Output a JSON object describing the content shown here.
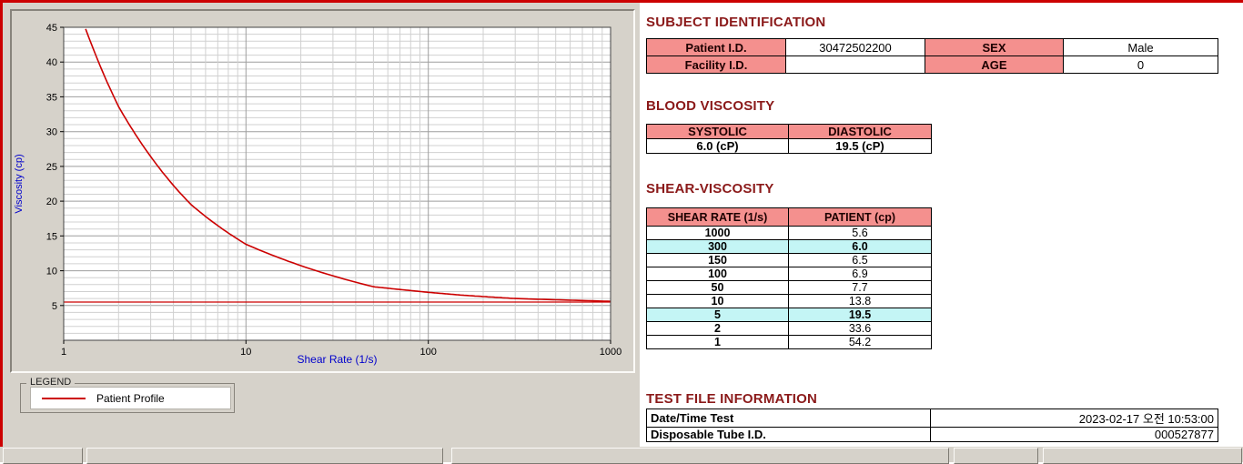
{
  "colors": {
    "section_title": "#8b1a1a",
    "table_header_bg": "#f4908e",
    "highlight_bg": "#c4f5f5",
    "curve_red": "#cc0000",
    "axis_label_blue": "#0000cc"
  },
  "chart_data": {
    "type": "line",
    "title": "",
    "xlabel": "Shear Rate (1/s)",
    "ylabel": "Viscosity (cp)",
    "x_scale": "log",
    "xlim": [
      1,
      1000
    ],
    "ylim": [
      0,
      45
    ],
    "x_ticks": [
      1,
      10,
      100,
      1000
    ],
    "y_ticks": [
      5,
      10,
      15,
      20,
      25,
      30,
      35,
      40,
      45
    ],
    "grid": true,
    "series": [
      {
        "name": "Patient Profile",
        "color": "#cc0000",
        "x": [
          1,
          2,
          5,
          10,
          50,
          100,
          150,
          300,
          1000
        ],
        "y": [
          54.2,
          33.6,
          19.5,
          13.8,
          7.7,
          6.9,
          6.5,
          6.0,
          5.6
        ]
      }
    ],
    "reference_line_y": 5.5,
    "legend_position": "below-left"
  },
  "legend": {
    "group_label": "LEGEND",
    "item_label": "Patient Profile"
  },
  "subject": {
    "title": "SUBJECT IDENTIFICATION",
    "rows": [
      {
        "label1": "Patient I.D.",
        "value1": "30472502200",
        "label2": "SEX",
        "value2": "Male"
      },
      {
        "label1": "Facility I.D.",
        "value1": "",
        "label2": "AGE",
        "value2": "0"
      }
    ]
  },
  "blood_viscosity": {
    "title": "BLOOD VISCOSITY",
    "headers": [
      "SYSTOLIC",
      "DIASTOLIC"
    ],
    "values": [
      "6.0 (cP)",
      "19.5 (cP)"
    ]
  },
  "shear_viscosity": {
    "title": "SHEAR-VISCOSITY",
    "headers": [
      "SHEAR RATE (1/s)",
      "PATIENT (cp)"
    ],
    "rows": [
      {
        "rate": "1000",
        "value": "5.6",
        "highlight": false
      },
      {
        "rate": "300",
        "value": "6.0",
        "highlight": true
      },
      {
        "rate": "150",
        "value": "6.5",
        "highlight": false
      },
      {
        "rate": "100",
        "value": "6.9",
        "highlight": false
      },
      {
        "rate": "50",
        "value": "7.7",
        "highlight": false
      },
      {
        "rate": "10",
        "value": "13.8",
        "highlight": false
      },
      {
        "rate": "5",
        "value": "19.5",
        "highlight": true
      },
      {
        "rate": "2",
        "value": "33.6",
        "highlight": false
      },
      {
        "rate": "1",
        "value": "54.2",
        "highlight": false
      }
    ]
  },
  "test_file": {
    "title": "TEST FILE INFORMATION",
    "rows": [
      {
        "label": "Date/Time Test",
        "value": "2023-02-17   오전 10:53:00"
      },
      {
        "label": "Disposable Tube I.D.",
        "value": "000527877"
      }
    ]
  }
}
